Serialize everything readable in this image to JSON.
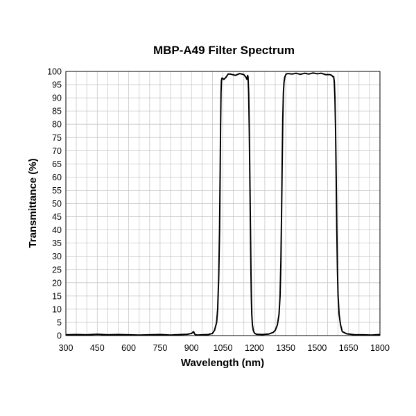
{
  "chart_data": {
    "type": "line",
    "title": "MBP-A49 Filter Spectrum",
    "xlabel": "Wavelength (nm)",
    "ylabel": "Transmittance (%)",
    "xlim": [
      300,
      1800
    ],
    "ylim": [
      0,
      100
    ],
    "x_ticks": [
      "300",
      "450",
      "600",
      "750",
      "900",
      "1050",
      "1200",
      "1350",
      "1500",
      "1650",
      "1800"
    ],
    "y_ticks": [
      "0",
      "5",
      "10",
      "15",
      "20",
      "25",
      "30",
      "35",
      "40",
      "45",
      "50",
      "55",
      "60",
      "65",
      "70",
      "75",
      "80",
      "85",
      "90",
      "95",
      "100"
    ],
    "grid": true,
    "legend": "none",
    "line_color": "#000000",
    "grid_color": "#c8c8c8",
    "series": [
      {
        "x": [
          300,
          350,
          400,
          450,
          500,
          550,
          600,
          650,
          700,
          750,
          800,
          850,
          880,
          900,
          910,
          915,
          920,
          930,
          950,
          980,
          1000,
          1010,
          1020,
          1025,
          1030,
          1034,
          1037,
          1039,
          1041,
          1043,
          1046,
          1055,
          1065,
          1075,
          1085,
          1095,
          1110,
          1130,
          1150,
          1160,
          1165,
          1168,
          1170,
          1173,
          1176,
          1179,
          1182,
          1184,
          1186,
          1188,
          1191,
          1195,
          1200,
          1210,
          1240,
          1270,
          1290,
          1300,
          1310,
          1318,
          1323,
          1327,
          1330,
          1333,
          1336,
          1339,
          1342,
          1346,
          1352,
          1360,
          1380,
          1400,
          1420,
          1440,
          1460,
          1480,
          1500,
          1520,
          1540,
          1560,
          1570,
          1575,
          1579,
          1582,
          1585,
          1588,
          1591,
          1594,
          1597,
          1600,
          1605,
          1612,
          1620,
          1640,
          1680,
          1720,
          1760,
          1800
        ],
        "y": [
          0.3,
          0.4,
          0.3,
          0.5,
          0.3,
          0.4,
          0.3,
          0.2,
          0.3,
          0.4,
          0.2,
          0.4,
          0.5,
          0.8,
          1.5,
          0.6,
          0.3,
          0.2,
          0.3,
          0.4,
          0.8,
          2.0,
          5.0,
          10.0,
          22.0,
          40.0,
          62.0,
          80.0,
          92.0,
          96.5,
          97.5,
          97.0,
          97.8,
          99.0,
          99.0,
          98.8,
          98.5,
          99.2,
          98.8,
          97.8,
          97.0,
          98.5,
          98.0,
          92.0,
          78.0,
          58.0,
          38.0,
          24.0,
          14.0,
          8.0,
          4.0,
          2.0,
          1.0,
          0.5,
          0.4,
          0.6,
          1.2,
          2.0,
          4.0,
          8.0,
          15.0,
          28.0,
          45.0,
          65.0,
          82.0,
          92.0,
          96.0,
          98.0,
          99.0,
          99.2,
          99.0,
          99.3,
          98.9,
          99.3,
          99.0,
          99.4,
          99.1,
          99.3,
          98.8,
          98.8,
          98.5,
          98.0,
          98.0,
          96.0,
          90.0,
          78.0,
          60.0,
          40.0,
          25.0,
          15.0,
          8.0,
          4.0,
          1.5,
          0.7,
          0.3,
          0.3,
          0.2,
          0.4
        ]
      }
    ]
  }
}
